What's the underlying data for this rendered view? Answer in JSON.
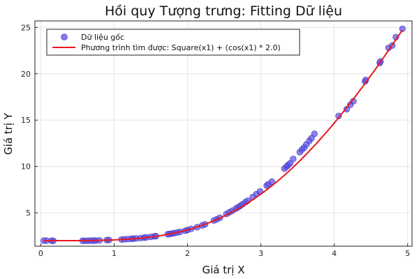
{
  "chart_data": {
    "type": "scatter",
    "title": "Hồi quy Tượng trưng: Fitting Dữ liệu",
    "xlabel": "Giá trị X",
    "ylabel": "Giá trị Y",
    "xlim": [
      -0.08,
      5.06
    ],
    "ylim": [
      1.4,
      25.7
    ],
    "xticks": [
      0,
      1,
      2,
      3,
      4,
      5
    ],
    "yticks": [
      5,
      10,
      15,
      20,
      25
    ],
    "grid": true,
    "legend_position": "top-left",
    "series": [
      {
        "name": "Dữ liệu gốc",
        "kind": "scatter",
        "color": "#5a4ee6",
        "points": [
          [
            0.04,
            2.0
          ],
          [
            0.08,
            2.0
          ],
          [
            0.15,
            1.99
          ],
          [
            0.17,
            1.98
          ],
          [
            0.57,
            1.99
          ],
          [
            0.6,
            1.98
          ],
          [
            0.64,
            1.99
          ],
          [
            0.68,
            2.0
          ],
          [
            0.72,
            2.0
          ],
          [
            0.75,
            2.01
          ],
          [
            0.8,
            2.03
          ],
          [
            0.9,
            2.06
          ],
          [
            0.93,
            2.08
          ],
          [
            1.1,
            2.12
          ],
          [
            1.14,
            2.14
          ],
          [
            1.19,
            2.17
          ],
          [
            1.24,
            2.2
          ],
          [
            1.26,
            2.22
          ],
          [
            1.3,
            2.24
          ],
          [
            1.36,
            2.28
          ],
          [
            1.41,
            2.33
          ],
          [
            1.44,
            2.36
          ],
          [
            1.5,
            2.41
          ],
          [
            1.55,
            2.47
          ],
          [
            1.57,
            2.48
          ],
          [
            1.73,
            2.69
          ],
          [
            1.76,
            2.73
          ],
          [
            1.79,
            2.77
          ],
          [
            1.82,
            2.81
          ],
          [
            1.86,
            2.88
          ],
          [
            1.9,
            2.95
          ],
          [
            1.97,
            3.07
          ],
          [
            2.0,
            3.15
          ],
          [
            2.05,
            3.27
          ],
          [
            2.13,
            3.45
          ],
          [
            2.2,
            3.65
          ],
          [
            2.24,
            3.76
          ],
          [
            2.36,
            4.18
          ],
          [
            2.4,
            4.31
          ],
          [
            2.44,
            4.48
          ],
          [
            2.53,
            4.88
          ],
          [
            2.57,
            5.06
          ],
          [
            2.61,
            5.23
          ],
          [
            2.66,
            5.46
          ],
          [
            2.69,
            5.6
          ],
          [
            2.72,
            5.76
          ],
          [
            2.75,
            5.93
          ],
          [
            2.79,
            6.16
          ],
          [
            2.82,
            6.31
          ],
          [
            2.89,
            6.71
          ],
          [
            2.94,
            7.03
          ],
          [
            2.99,
            7.31
          ],
          [
            3.08,
            7.94
          ],
          [
            3.1,
            8.08
          ],
          [
            3.15,
            8.37
          ],
          [
            3.32,
            9.77
          ],
          [
            3.35,
            9.98
          ],
          [
            3.37,
            10.15
          ],
          [
            3.4,
            10.35
          ],
          [
            3.44,
            10.82
          ],
          [
            3.53,
            11.55
          ],
          [
            3.56,
            11.83
          ],
          [
            3.59,
            12.05
          ],
          [
            3.62,
            12.38
          ],
          [
            3.66,
            12.76
          ],
          [
            3.69,
            13.05
          ],
          [
            3.73,
            13.52
          ],
          [
            4.06,
            15.45
          ],
          [
            4.17,
            16.18
          ],
          [
            4.22,
            16.66
          ],
          [
            4.26,
            17.04
          ],
          [
            4.42,
            19.17
          ],
          [
            4.43,
            19.34
          ],
          [
            4.62,
            21.16
          ],
          [
            4.63,
            21.34
          ],
          [
            4.74,
            22.79
          ],
          [
            4.79,
            23.05
          ],
          [
            4.84,
            23.95
          ],
          [
            4.93,
            24.85
          ]
        ]
      },
      {
        "name": "Phương trình tìm được: Square(x1) + (cos(x1) * 2.0)",
        "kind": "line",
        "color": "#e8171f"
      }
    ]
  }
}
